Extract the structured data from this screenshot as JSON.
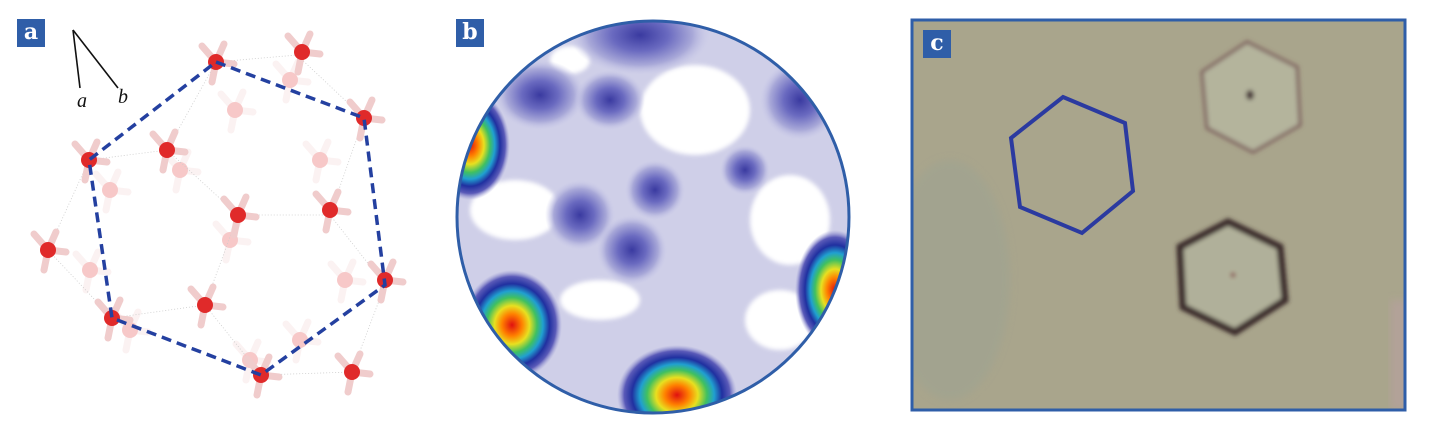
{
  "panels": [
    {
      "label": "a",
      "axes": {
        "a": "a",
        "b": "b"
      }
    },
    {
      "label": "b"
    },
    {
      "label": "c"
    }
  ],
  "colors": {
    "label_bg": "#2f5ea8",
    "outline_blue": "#2b3aa0",
    "oxygen": "#e03030",
    "hydrogen": "#f2d4d4",
    "photo_bg": "#a8a48a"
  }
}
